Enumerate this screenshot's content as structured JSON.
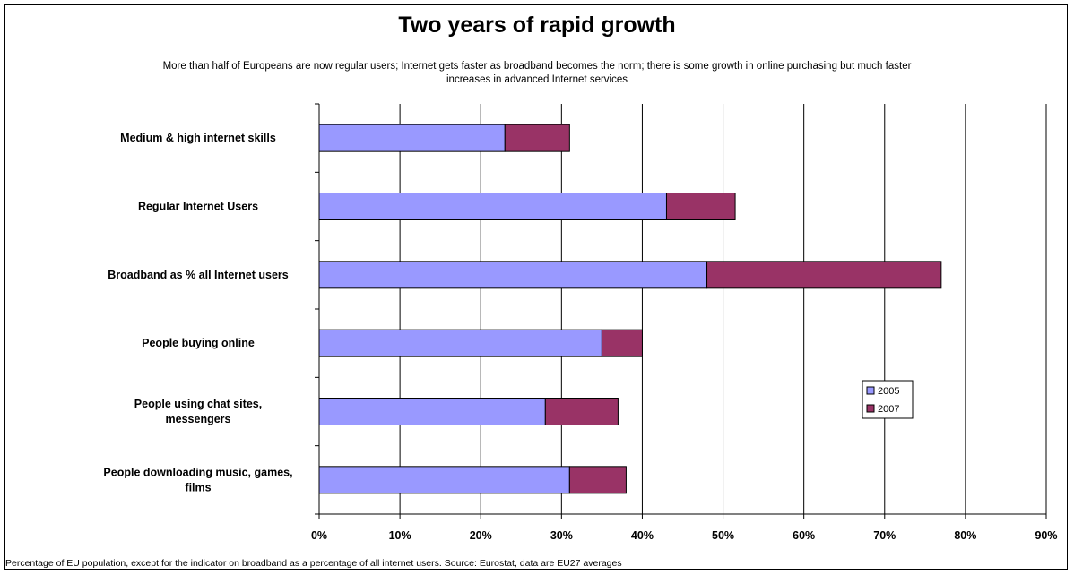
{
  "chart_data": {
    "type": "bar",
    "orientation": "horizontal",
    "stacked": true,
    "title": "Two years of rapid growth",
    "subtitle": "More than half of Europeans are now regular users; Internet gets faster as broadband becomes the norm; there is some growth in online purchasing but much faster increases in advanced Internet services",
    "footnote": "Percentage of EU population, except for the indicator on broadband as a percentage of all internet users. Source: Eurostat, data are EU27 averages",
    "categories": [
      "Medium & high internet skills",
      "Regular Internet Users",
      "Broadband as % all Internet users",
      "People buying online",
      "People using chat sites, messengers",
      "People downloading music, games, films"
    ],
    "series": [
      {
        "name": "2005",
        "color": "#9999ff",
        "values": [
          23,
          43,
          48,
          35,
          28,
          31
        ]
      },
      {
        "name": "2007",
        "color": "#993366",
        "values": [
          8,
          8.5,
          29,
          5,
          9,
          7
        ]
      }
    ],
    "xlim": [
      0,
      90
    ],
    "x_ticks": [
      "0%",
      "10%",
      "20%",
      "30%",
      "40%",
      "50%",
      "60%",
      "70%",
      "80%",
      "90%"
    ],
    "x_tick_values": [
      0,
      10,
      20,
      30,
      40,
      50,
      60,
      70,
      80,
      90
    ],
    "grid": "vertical",
    "legend_position": "right"
  }
}
